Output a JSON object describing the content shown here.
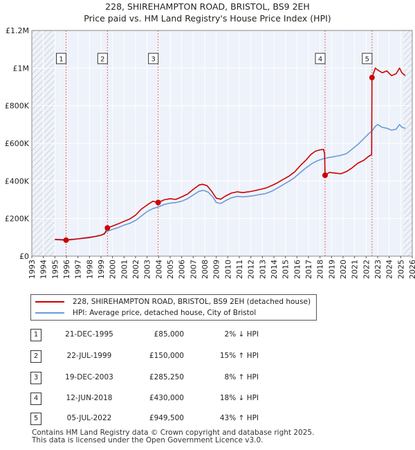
{
  "chart_data": {
    "type": "line",
    "title": "228, SHIREHAMPTON ROAD, BRISTOL, BS9 2EH",
    "subtitle": "Price paid vs. HM Land Registry's House Price Index (HPI)",
    "xlabel": "",
    "ylabel": "",
    "xlim": [
      1993,
      2026
    ],
    "ylim": [
      0,
      1200000
    ],
    "x_ticks": [
      1993,
      1994,
      1995,
      1996,
      1997,
      1998,
      1999,
      2000,
      2001,
      2002,
      2003,
      2004,
      2005,
      2006,
      2007,
      2008,
      2009,
      2010,
      2011,
      2012,
      2013,
      2014,
      2015,
      2016,
      2017,
      2018,
      2019,
      2020,
      2021,
      2022,
      2023,
      2024,
      2025,
      2026
    ],
    "y_ticks": [
      {
        "value": 0,
        "label": "£0"
      },
      {
        "value": 200000,
        "label": "£200K"
      },
      {
        "value": 400000,
        "label": "£400K"
      },
      {
        "value": 600000,
        "label": "£600K"
      },
      {
        "value": 800000,
        "label": "£800K"
      },
      {
        "value": 1000000,
        "label": "£1M"
      },
      {
        "value": 1200000,
        "label": "£1.2M"
      }
    ],
    "grid": true,
    "hatched_ranges": [
      [
        1993,
        1995.0
      ],
      [
        2025.25,
        2026
      ]
    ],
    "series": [
      {
        "name": "228, SHIREHAMPTON ROAD, BRISTOL, BS9 2EH (detached house)",
        "color": "#cc0000",
        "points": [
          [
            1995.0,
            88000
          ],
          [
            1995.5,
            87000
          ],
          [
            1995.97,
            85000
          ],
          [
            1996.5,
            88000
          ],
          [
            1997.0,
            92000
          ],
          [
            1997.5,
            96000
          ],
          [
            1998.0,
            100000
          ],
          [
            1998.5,
            105000
          ],
          [
            1999.0,
            112000
          ],
          [
            1999.3,
            118000
          ],
          [
            1999.56,
            150000
          ],
          [
            2000.0,
            160000
          ],
          [
            2000.5,
            172000
          ],
          [
            2001.0,
            185000
          ],
          [
            2001.5,
            198000
          ],
          [
            2002.0,
            218000
          ],
          [
            2002.5,
            250000
          ],
          [
            2003.0,
            272000
          ],
          [
            2003.5,
            292000
          ],
          [
            2003.96,
            285250
          ],
          [
            2004.5,
            300000
          ],
          [
            2005.0,
            305000
          ],
          [
            2005.5,
            302000
          ],
          [
            2006.0,
            315000
          ],
          [
            2006.5,
            330000
          ],
          [
            2007.0,
            355000
          ],
          [
            2007.5,
            378000
          ],
          [
            2007.8,
            382000
          ],
          [
            2008.2,
            375000
          ],
          [
            2008.6,
            345000
          ],
          [
            2009.0,
            308000
          ],
          [
            2009.4,
            303000
          ],
          [
            2009.8,
            320000
          ],
          [
            2010.3,
            335000
          ],
          [
            2010.8,
            342000
          ],
          [
            2011.3,
            338000
          ],
          [
            2011.8,
            342000
          ],
          [
            2012.3,
            348000
          ],
          [
            2012.8,
            355000
          ],
          [
            2013.3,
            362000
          ],
          [
            2013.8,
            375000
          ],
          [
            2014.3,
            390000
          ],
          [
            2014.8,
            408000
          ],
          [
            2015.3,
            425000
          ],
          [
            2015.8,
            448000
          ],
          [
            2016.3,
            482000
          ],
          [
            2016.8,
            512000
          ],
          [
            2017.2,
            540000
          ],
          [
            2017.6,
            558000
          ],
          [
            2018.0,
            565000
          ],
          [
            2018.3,
            568000
          ],
          [
            2018.4,
            545000
          ],
          [
            2018.44,
            430000
          ],
          [
            2018.8,
            445000
          ],
          [
            2019.3,
            442000
          ],
          [
            2019.8,
            438000
          ],
          [
            2020.3,
            450000
          ],
          [
            2020.8,
            470000
          ],
          [
            2021.3,
            495000
          ],
          [
            2021.8,
            510000
          ],
          [
            2022.2,
            530000
          ],
          [
            2022.48,
            540000
          ],
          [
            2022.51,
            949500
          ],
          [
            2022.8,
            1000000
          ],
          [
            2023.0,
            990000
          ],
          [
            2023.4,
            975000
          ],
          [
            2023.8,
            985000
          ],
          [
            2024.2,
            960000
          ],
          [
            2024.6,
            970000
          ],
          [
            2024.9,
            1000000
          ],
          [
            2025.1,
            975000
          ],
          [
            2025.4,
            960000
          ]
        ]
      },
      {
        "name": "HPI: Average price, detached house, City of Bristol",
        "color": "#6a9ad6",
        "points": [
          [
            1995.0,
            90000
          ],
          [
            1996.0,
            88000
          ],
          [
            1997.0,
            92000
          ],
          [
            1998.0,
            98000
          ],
          [
            1999.0,
            110000
          ],
          [
            1999.56,
            132000
          ],
          [
            2000.0,
            142000
          ],
          [
            2000.5,
            152000
          ],
          [
            2001.0,
            165000
          ],
          [
            2001.5,
            175000
          ],
          [
            2002.0,
            190000
          ],
          [
            2002.5,
            213000
          ],
          [
            2003.0,
            237000
          ],
          [
            2003.5,
            253000
          ],
          [
            2004.0,
            262000
          ],
          [
            2004.5,
            275000
          ],
          [
            2005.0,
            282000
          ],
          [
            2005.5,
            285000
          ],
          [
            2006.0,
            292000
          ],
          [
            2006.5,
            305000
          ],
          [
            2007.0,
            325000
          ],
          [
            2007.5,
            345000
          ],
          [
            2007.9,
            350000
          ],
          [
            2008.3,
            340000
          ],
          [
            2008.7,
            315000
          ],
          [
            2009.0,
            285000
          ],
          [
            2009.4,
            280000
          ],
          [
            2009.8,
            295000
          ],
          [
            2010.3,
            310000
          ],
          [
            2010.8,
            318000
          ],
          [
            2011.3,
            315000
          ],
          [
            2011.8,
            318000
          ],
          [
            2012.3,
            322000
          ],
          [
            2012.8,
            328000
          ],
          [
            2013.3,
            333000
          ],
          [
            2013.8,
            345000
          ],
          [
            2014.3,
            362000
          ],
          [
            2014.8,
            380000
          ],
          [
            2015.3,
            398000
          ],
          [
            2015.8,
            418000
          ],
          [
            2016.3,
            445000
          ],
          [
            2016.8,
            470000
          ],
          [
            2017.3,
            492000
          ],
          [
            2017.8,
            508000
          ],
          [
            2018.3,
            518000
          ],
          [
            2018.8,
            525000
          ],
          [
            2019.3,
            530000
          ],
          [
            2019.8,
            536000
          ],
          [
            2020.3,
            545000
          ],
          [
            2020.8,
            570000
          ],
          [
            2021.3,
            595000
          ],
          [
            2021.8,
            625000
          ],
          [
            2022.2,
            650000
          ],
          [
            2022.5,
            665000
          ],
          [
            2022.8,
            690000
          ],
          [
            2023.0,
            700000
          ],
          [
            2023.4,
            685000
          ],
          [
            2023.8,
            680000
          ],
          [
            2024.2,
            670000
          ],
          [
            2024.6,
            675000
          ],
          [
            2024.9,
            700000
          ],
          [
            2025.1,
            685000
          ],
          [
            2025.4,
            680000
          ]
        ]
      }
    ],
    "sales": [
      {
        "label": "1",
        "x": 1995.97,
        "price": 85000
      },
      {
        "label": "2",
        "x": 1999.56,
        "price": 150000
      },
      {
        "label": "3",
        "x": 2003.96,
        "price": 285250
      },
      {
        "label": "4",
        "x": 2018.44,
        "price": 430000
      },
      {
        "label": "5",
        "x": 2022.51,
        "price": 949500
      }
    ]
  },
  "legend": {
    "property_label": "228, SHIREHAMPTON ROAD, BRISTOL, BS9 2EH (detached house)",
    "hpi_label": "HPI: Average price, detached house, City of Bristol"
  },
  "transactions": [
    {
      "num": "1",
      "date": "21-DEC-1995",
      "price": "£85,000",
      "hpi": "2% ↓ HPI"
    },
    {
      "num": "2",
      "date": "22-JUL-1999",
      "price": "£150,000",
      "hpi": "15% ↑ HPI"
    },
    {
      "num": "3",
      "date": "19-DEC-2003",
      "price": "£285,250",
      "hpi": "8% ↑ HPI"
    },
    {
      "num": "4",
      "date": "12-JUN-2018",
      "price": "£430,000",
      "hpi": "18% ↓ HPI"
    },
    {
      "num": "5",
      "date": "05-JUL-2022",
      "price": "£949,500",
      "hpi": "43% ↑ HPI"
    }
  ],
  "footer": {
    "line1": "Contains HM Land Registry data © Crown copyright and database right 2025.",
    "line2": "This data is licensed under the Open Government Licence v3.0."
  }
}
